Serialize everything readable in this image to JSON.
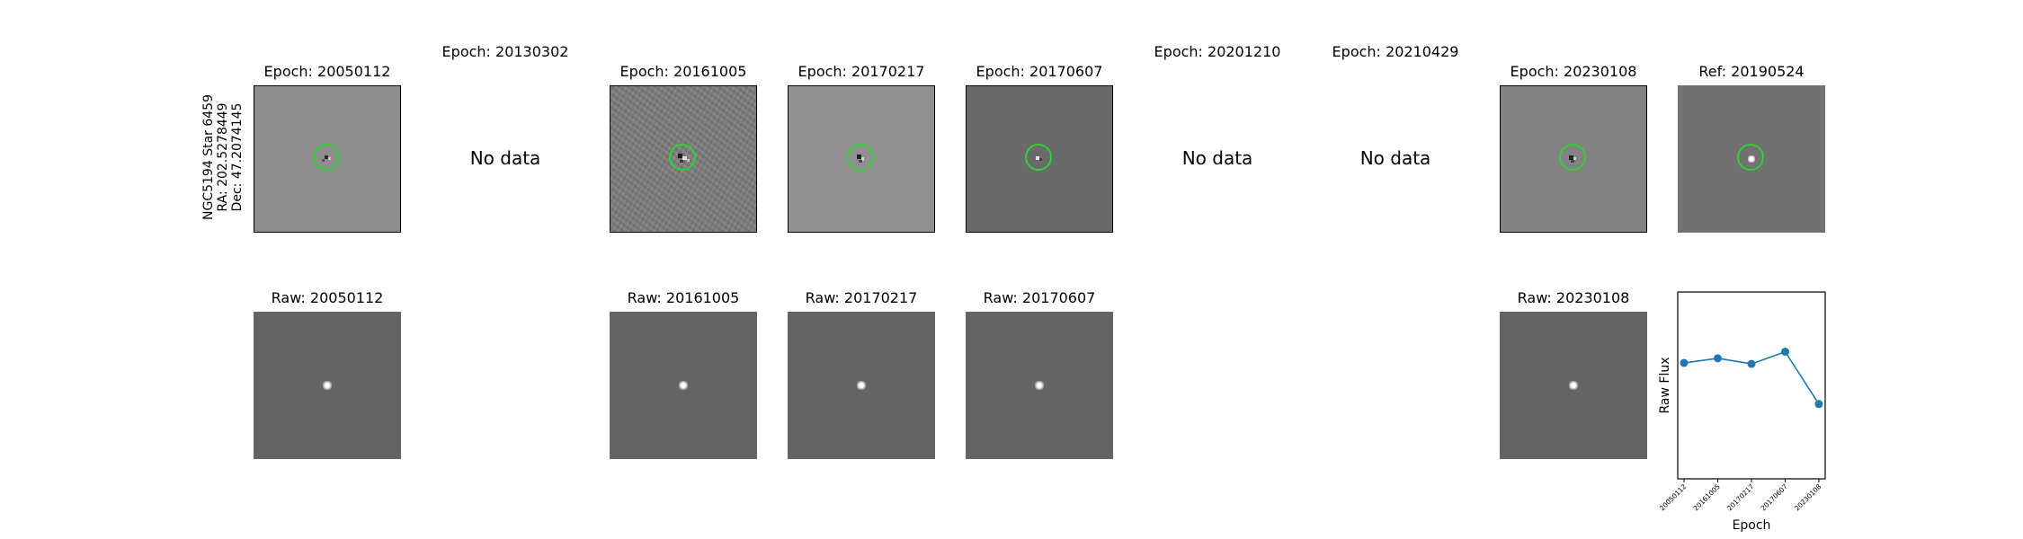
{
  "object_label": {
    "line1": "NGC5194 Star 6459",
    "line2": "RA: 202.5278449",
    "line3": "Dec: 47.2074145"
  },
  "diff_row": [
    {
      "title": "Epoch: 20050112",
      "has_data": true,
      "bg": "#8e8e8e"
    },
    {
      "title": "Epoch: 20130302",
      "has_data": false,
      "no_data_text": "No data"
    },
    {
      "title": "Epoch: 20161005",
      "has_data": true,
      "bg": "#7f7f7f"
    },
    {
      "title": "Epoch: 20170217",
      "has_data": true,
      "bg": "#909090"
    },
    {
      "title": "Epoch: 20170607",
      "has_data": true,
      "bg": "#6a6a6a"
    },
    {
      "title": "Epoch: 20201210",
      "has_data": false,
      "no_data_text": "No data"
    },
    {
      "title": "Epoch: 20210429",
      "has_data": false,
      "no_data_text": "No data"
    },
    {
      "title": "Epoch: 20230108",
      "has_data": true,
      "bg": "#828282"
    },
    {
      "title": "Ref: 20190524",
      "has_data": true,
      "bg": "#717171",
      "ref": true
    }
  ],
  "raw_row": [
    {
      "title": "Raw: 20050112"
    },
    {
      "title": "Raw: 20161005"
    },
    {
      "title": "Raw: 20170217"
    },
    {
      "title": "Raw: 20170607"
    },
    {
      "title": "Raw: 20230108"
    }
  ],
  "colors": {
    "circle": "#2fd12f",
    "line": "#1f77b4",
    "raw_bg": "#646464"
  },
  "chart_data": {
    "type": "line",
    "xlabel": "Epoch",
    "ylabel": "Raw Flux",
    "x": [
      "20050112",
      "20161005",
      "20170217",
      "20170607",
      "20230108"
    ],
    "series": [
      {
        "values": [
          0.62,
          0.645,
          0.615,
          0.68,
          0.4
        ]
      }
    ],
    "ylim": [
      0,
      1
    ],
    "grid": false,
    "yticks_shown": false
  }
}
